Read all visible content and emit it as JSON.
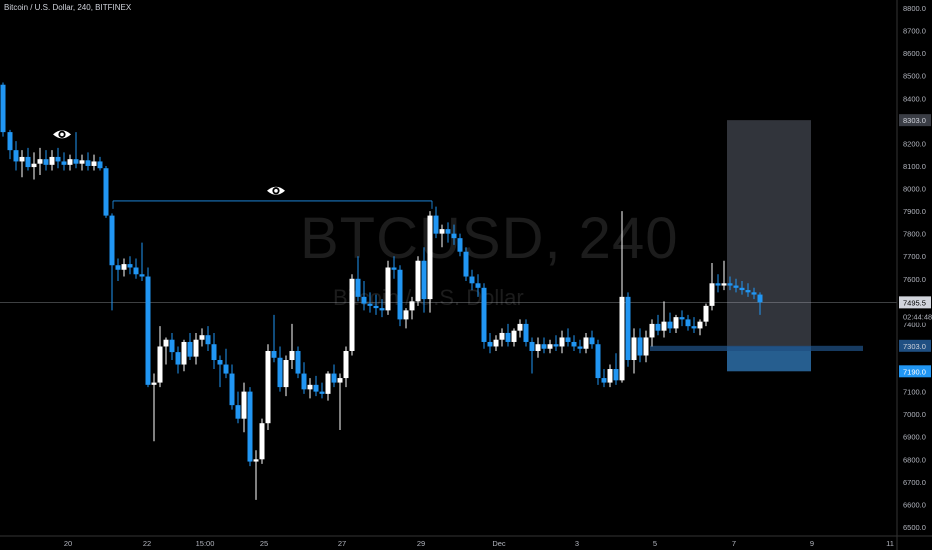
{
  "header": {
    "title": "Bitcoin / U.S. Dollar, 240, BITFINEX"
  },
  "watermark": {
    "symbol": "BTCUSD, 240",
    "name": "Bitcoin / U.S. Dollar"
  },
  "colors": {
    "background": "#000000",
    "up": "#ffffff",
    "down": "#2196f3",
    "axis_text": "#b2b5be",
    "axis_line": "#333333",
    "box": "#3a3d45",
    "zone": "#1f4f82",
    "sl_zone": "#2d6fa8",
    "current_line": "#b2b5be"
  },
  "chart_data": {
    "type": "candlestick",
    "title": "Bitcoin / U.S. Dollar, 240, BITFINEX",
    "timeframe": "240",
    "x_ticks": [
      "20",
      "22",
      "15:00",
      "25",
      "27",
      "29",
      "Dec",
      "3",
      "5",
      "7",
      "9",
      "11"
    ],
    "y_ticks": [
      6500,
      6600,
      6700,
      6800,
      6900,
      7000,
      7100,
      7200,
      7300,
      7400,
      7500,
      7600,
      7700,
      7800,
      7900,
      8000,
      8100,
      8200,
      8300,
      8400,
      8500,
      8600,
      8700,
      8800
    ],
    "ylim": [
      6450,
      8830
    ],
    "price_labels": [
      {
        "id": "target",
        "value": "8303.0",
        "price": 8303,
        "style": "box"
      },
      {
        "id": "current",
        "value": "7495.5",
        "price": 7495.5,
        "style": "current"
      },
      {
        "id": "countdown",
        "value": "02:44:48",
        "price": 7432,
        "style": "countdown"
      },
      {
        "id": "entry",
        "value": "7303.0",
        "price": 7303,
        "style": "zone"
      },
      {
        "id": "stop",
        "value": "7190.0",
        "price": 7190,
        "style": "stop"
      }
    ],
    "zones": {
      "target_box": {
        "from_x": 727,
        "to_x": 811,
        "top_price": 8303,
        "bottom_price": 7300
      },
      "stop_box": {
        "from_x": 727,
        "to_x": 811,
        "top_price": 7300,
        "bottom_price": 7190
      },
      "demand_zone": {
        "from_x": 650,
        "to_x": 863,
        "top_price": 7303,
        "bottom_price": 7280
      }
    },
    "annotations": [
      {
        "type": "eye",
        "x": 62,
        "price": 8240
      },
      {
        "type": "eye",
        "x": 276,
        "price": 7990
      },
      {
        "type": "hline",
        "from_x": 113,
        "to_x": 432,
        "price": 7945,
        "ends": "down"
      }
    ],
    "candles": [
      [
        3,
        8460,
        8470,
        8230,
        8250
      ],
      [
        10,
        8250,
        8260,
        8130,
        8170
      ],
      [
        16,
        8170,
        8210,
        8080,
        8120
      ],
      [
        22,
        8120,
        8170,
        8050,
        8140
      ],
      [
        28,
        8140,
        8180,
        8080,
        8095
      ],
      [
        34,
        8095,
        8160,
        8040,
        8110
      ],
      [
        40,
        8110,
        8180,
        8060,
        8130
      ],
      [
        46,
        8130,
        8170,
        8080,
        8105
      ],
      [
        52,
        8105,
        8170,
        8080,
        8140
      ],
      [
        58,
        8140,
        8180,
        8090,
        8120
      ],
      [
        64,
        8120,
        8160,
        8080,
        8105
      ],
      [
        70,
        8105,
        8150,
        8080,
        8130
      ],
      [
        76,
        8130,
        8250,
        8090,
        8110
      ],
      [
        82,
        8110,
        8150,
        8080,
        8125
      ],
      [
        88,
        8125,
        8160,
        8080,
        8100
      ],
      [
        94,
        8100,
        8150,
        8080,
        8120
      ],
      [
        100,
        8120,
        8140,
        8080,
        8090
      ],
      [
        106,
        8090,
        8100,
        7870,
        7880
      ],
      [
        112,
        7880,
        7890,
        7460,
        7660
      ],
      [
        118,
        7660,
        7690,
        7590,
        7640
      ],
      [
        124,
        7640,
        7690,
        7610,
        7665
      ],
      [
        130,
        7665,
        7700,
        7620,
        7650
      ],
      [
        136,
        7650,
        7690,
        7600,
        7620
      ],
      [
        142,
        7620,
        7760,
        7590,
        7610
      ],
      [
        148,
        7610,
        7650,
        7120,
        7130
      ],
      [
        154,
        7130,
        7180,
        6880,
        7140
      ],
      [
        160,
        7140,
        7390,
        7120,
        7300
      ],
      [
        166,
        7300,
        7340,
        7220,
        7330
      ],
      [
        172,
        7330,
        7360,
        7240,
        7275
      ],
      [
        178,
        7275,
        7300,
        7180,
        7220
      ],
      [
        184,
        7220,
        7330,
        7190,
        7320
      ],
      [
        190,
        7320,
        7360,
        7240,
        7255
      ],
      [
        196,
        7255,
        7360,
        7220,
        7330
      ],
      [
        202,
        7330,
        7380,
        7300,
        7350
      ],
      [
        208,
        7350,
        7390,
        7280,
        7310
      ],
      [
        214,
        7310,
        7360,
        7200,
        7240
      ],
      [
        220,
        7240,
        7260,
        7120,
        7220
      ],
      [
        226,
        7220,
        7290,
        7160,
        7180
      ],
      [
        232,
        7180,
        7220,
        7020,
        7040
      ],
      [
        238,
        7040,
        7100,
        6960,
        6980
      ],
      [
        244,
        6980,
        7140,
        6920,
        7100
      ],
      [
        250,
        7100,
        7120,
        6770,
        6790
      ],
      [
        256,
        6790,
        6840,
        6620,
        6800
      ],
      [
        262,
        6800,
        6980,
        6780,
        6960
      ],
      [
        268,
        6960,
        7310,
        6930,
        7280
      ],
      [
        274,
        7280,
        7440,
        7230,
        7250
      ],
      [
        280,
        7250,
        7300,
        7100,
        7120
      ],
      [
        286,
        7120,
        7260,
        7080,
        7240
      ],
      [
        292,
        7240,
        7400,
        7200,
        7280
      ],
      [
        298,
        7280,
        7300,
        7160,
        7180
      ],
      [
        304,
        7180,
        7230,
        7090,
        7110
      ],
      [
        310,
        7110,
        7160,
        7070,
        7130
      ],
      [
        316,
        7130,
        7170,
        7080,
        7100
      ],
      [
        322,
        7100,
        7140,
        7070,
        7090
      ],
      [
        328,
        7090,
        7190,
        7060,
        7180
      ],
      [
        334,
        7180,
        7220,
        7120,
        7140
      ],
      [
        340,
        7140,
        7180,
        6930,
        7160
      ],
      [
        346,
        7160,
        7300,
        7120,
        7280
      ],
      [
        352,
        7280,
        7620,
        7260,
        7600
      ],
      [
        358,
        7600,
        7700,
        7500,
        7520
      ],
      [
        364,
        7520,
        7590,
        7460,
        7490
      ],
      [
        370,
        7490,
        7540,
        7450,
        7480
      ],
      [
        376,
        7480,
        7530,
        7440,
        7470
      ],
      [
        382,
        7470,
        7510,
        7430,
        7460
      ],
      [
        388,
        7460,
        7680,
        7440,
        7650
      ],
      [
        394,
        7650,
        7700,
        7600,
        7640
      ],
      [
        400,
        7640,
        7660,
        7390,
        7420
      ],
      [
        406,
        7420,
        7470,
        7380,
        7460
      ],
      [
        412,
        7460,
        7520,
        7420,
        7500
      ],
      [
        418,
        7500,
        7700,
        7480,
        7680
      ],
      [
        424,
        7680,
        7740,
        7450,
        7510
      ],
      [
        430,
        7510,
        7900,
        7450,
        7880
      ],
      [
        436,
        7880,
        7920,
        7780,
        7800
      ],
      [
        442,
        7800,
        7840,
        7740,
        7820
      ],
      [
        448,
        7820,
        7850,
        7760,
        7800
      ],
      [
        454,
        7800,
        7840,
        7750,
        7780
      ],
      [
        460,
        7780,
        7800,
        7700,
        7720
      ],
      [
        466,
        7720,
        7740,
        7590,
        7610
      ],
      [
        472,
        7610,
        7640,
        7550,
        7580
      ],
      [
        478,
        7580,
        7620,
        7520,
        7560
      ],
      [
        484,
        7560,
        7580,
        7290,
        7320
      ],
      [
        490,
        7320,
        7360,
        7270,
        7300
      ],
      [
        496,
        7300,
        7350,
        7280,
        7330
      ],
      [
        502,
        7330,
        7380,
        7300,
        7360
      ],
      [
        508,
        7360,
        7400,
        7300,
        7320
      ],
      [
        514,
        7320,
        7380,
        7300,
        7370
      ],
      [
        520,
        7370,
        7420,
        7340,
        7400
      ],
      [
        526,
        7400,
        7420,
        7300,
        7320
      ],
      [
        532,
        7320,
        7340,
        7180,
        7280
      ],
      [
        538,
        7280,
        7340,
        7250,
        7310
      ],
      [
        544,
        7310,
        7340,
        7270,
        7290
      ],
      [
        550,
        7290,
        7330,
        7270,
        7310
      ],
      [
        556,
        7310,
        7350,
        7280,
        7300
      ],
      [
        562,
        7300,
        7370,
        7270,
        7340
      ],
      [
        568,
        7340,
        7380,
        7300,
        7320
      ],
      [
        574,
        7320,
        7350,
        7280,
        7300
      ],
      [
        580,
        7300,
        7330,
        7270,
        7290
      ],
      [
        586,
        7290,
        7360,
        7270,
        7340
      ],
      [
        592,
        7340,
        7370,
        7290,
        7310
      ],
      [
        598,
        7310,
        7330,
        7130,
        7160
      ],
      [
        604,
        7160,
        7200,
        7120,
        7140
      ],
      [
        610,
        7140,
        7220,
        7120,
        7200
      ],
      [
        616,
        7200,
        7270,
        7130,
        7150
      ],
      [
        622,
        7150,
        7900,
        7140,
        7520
      ],
      [
        628,
        7520,
        7540,
        7210,
        7240
      ],
      [
        634,
        7240,
        7380,
        7180,
        7340
      ],
      [
        640,
        7340,
        7380,
        7230,
        7260
      ],
      [
        646,
        7260,
        7370,
        7230,
        7340
      ],
      [
        652,
        7340,
        7420,
        7300,
        7400
      ],
      [
        658,
        7400,
        7440,
        7350,
        7370
      ],
      [
        664,
        7370,
        7500,
        7340,
        7410
      ],
      [
        670,
        7410,
        7450,
        7360,
        7380
      ],
      [
        676,
        7380,
        7440,
        7360,
        7430
      ],
      [
        682,
        7430,
        7460,
        7390,
        7420
      ],
      [
        688,
        7420,
        7440,
        7370,
        7390
      ],
      [
        694,
        7390,
        7430,
        7360,
        7380
      ],
      [
        700,
        7380,
        7420,
        7350,
        7410
      ],
      [
        706,
        7410,
        7490,
        7390,
        7480
      ],
      [
        712,
        7480,
        7670,
        7460,
        7580
      ],
      [
        718,
        7580,
        7620,
        7540,
        7570
      ],
      [
        724,
        7570,
        7680,
        7550,
        7580
      ],
      [
        730,
        7580,
        7610,
        7550,
        7570
      ],
      [
        736,
        7570,
        7600,
        7540,
        7560
      ],
      [
        742,
        7560,
        7590,
        7530,
        7550
      ],
      [
        748,
        7550,
        7580,
        7520,
        7540
      ],
      [
        754,
        7540,
        7560,
        7510,
        7530
      ],
      [
        760,
        7530,
        7540,
        7440,
        7495.5
      ]
    ]
  }
}
